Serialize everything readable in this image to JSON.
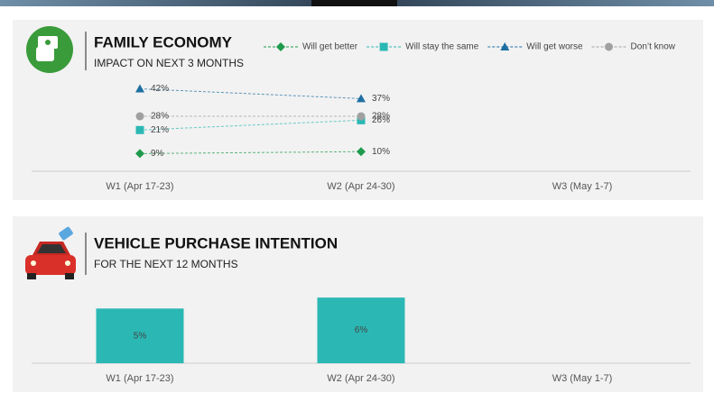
{
  "chart_data": [
    {
      "type": "line",
      "title": "FAMILY ECONOMY",
      "subtitle": "IMPACT ON NEXT 3 MONTHS",
      "categories": [
        "W1 (Apr 17-23)",
        "W2 (Apr 24-30)",
        "W3 (May 1-7)"
      ],
      "ylim": [
        0,
        45
      ],
      "series": [
        {
          "name": "Will get better",
          "color": "#1e9a4c",
          "marker": "diamond",
          "values": [
            9,
            10,
            null
          ],
          "value_labels": [
            "9%",
            "10%",
            null
          ]
        },
        {
          "name": "Will stay the same",
          "color": "#2bb8b4",
          "marker": "square",
          "values": [
            21,
            26,
            null
          ],
          "value_labels": [
            "21%",
            "26%",
            null
          ]
        },
        {
          "name": "Will get worse",
          "color": "#1f6fa3",
          "marker": "triangle",
          "values": [
            42,
            37,
            null
          ],
          "value_labels": [
            "42%",
            "37%",
            null
          ]
        },
        {
          "name": "Don’t know",
          "color": "#a0a0a0",
          "marker": "circle",
          "values": [
            28,
            28,
            null
          ],
          "value_labels": [
            "28%",
            "28%",
            null
          ]
        }
      ]
    },
    {
      "type": "bar",
      "title": "VEHICLE PURCHASE INTENTION",
      "subtitle": "FOR THE NEXT 12 MONTHS",
      "categories": [
        "W1 (Apr 17-23)",
        "W2 (Apr 24-30)",
        "W3 (May 1-7)"
      ],
      "ylim": [
        0,
        7
      ],
      "color": "#2bb8b4",
      "values": [
        5,
        6,
        null
      ],
      "value_labels": [
        "5%",
        "6%",
        null
      ]
    }
  ]
}
